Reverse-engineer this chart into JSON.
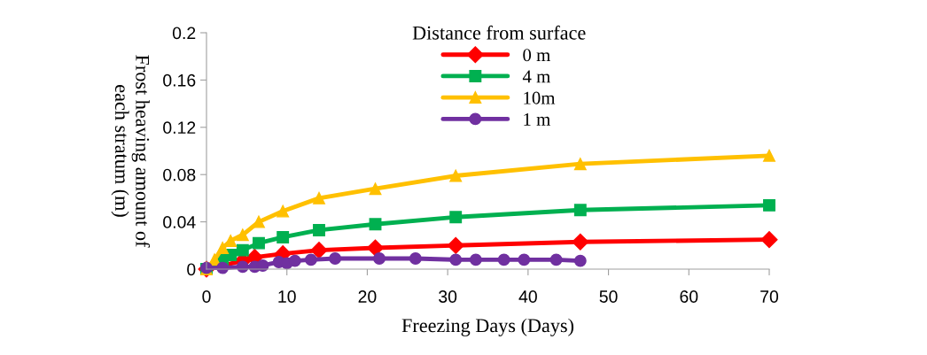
{
  "chart_data": {
    "type": "line",
    "xlabel": "Freezing Days (Days)",
    "ylabel": "Frost heaving amount of\neach stratum (m)",
    "legend_title": "Distance from surface",
    "legend": "top",
    "grid": false,
    "xlim": [
      0,
      70
    ],
    "xticks": [
      0,
      10,
      20,
      30,
      40,
      50,
      60,
      70
    ],
    "ylim": [
      0,
      0.2
    ],
    "yticks": [
      0,
      0.04,
      0.08,
      0.12,
      0.16,
      0.2
    ],
    "series": [
      {
        "name": "0 m",
        "color": "#ff0000",
        "marker": "diamond",
        "x": [
          0,
          4.5,
          6,
          9.5,
          14,
          21,
          31,
          46.5,
          70
        ],
        "values": [
          0,
          0.007,
          0.01,
          0.013,
          0.016,
          0.018,
          0.02,
          0.023,
          0.025
        ]
      },
      {
        "name": "4 m",
        "color": "#00b050",
        "marker": "square",
        "x": [
          0,
          2,
          3,
          4.5,
          6.5,
          9.5,
          14,
          21,
          31,
          46.5,
          70
        ],
        "values": [
          0,
          0.008,
          0.012,
          0.016,
          0.022,
          0.027,
          0.033,
          0.038,
          0.044,
          0.05,
          0.054
        ]
      },
      {
        "name": "10m",
        "color": "#ffc000",
        "marker": "triangle",
        "x": [
          0,
          1,
          2,
          3,
          4.5,
          6.5,
          9.5,
          14,
          21,
          31,
          46.5,
          70
        ],
        "values": [
          0,
          0.008,
          0.018,
          0.024,
          0.029,
          0.04,
          0.049,
          0.06,
          0.068,
          0.079,
          0.089,
          0.096
        ]
      },
      {
        "name": "1 m",
        "color": "#7030a0",
        "marker": "circle",
        "x": [
          0,
          2,
          4.5,
          6,
          7,
          9,
          10,
          11,
          13,
          16,
          21.5,
          26,
          31,
          33.5,
          37,
          39.5,
          43.5,
          46.5
        ],
        "values": [
          0.001,
          0.001,
          0.002,
          0.002,
          0.003,
          0.006,
          0.005,
          0.007,
          0.008,
          0.009,
          0.009,
          0.009,
          0.008,
          0.008,
          0.008,
          0.008,
          0.008,
          0.007
        ]
      }
    ]
  }
}
